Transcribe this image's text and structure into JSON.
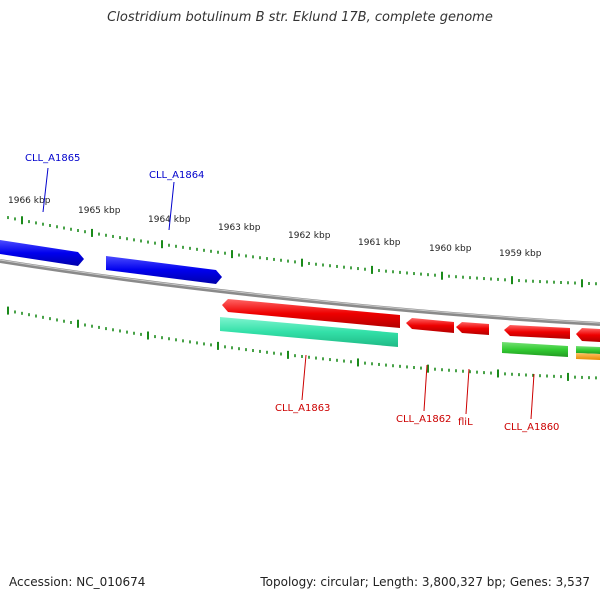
{
  "title": "Clostridium botulinum B str. Eklund 17B, complete genome",
  "footer": {
    "accession": "Accession: NC_010674",
    "summary": "Topology: circular; Length: 3,800,327 bp; Genes: 3,537"
  },
  "kbp_labels": [
    "1966 kbp",
    "1965 kbp",
    "1964 kbp",
    "1963 kbp",
    "1962 kbp",
    "1961 kbp",
    "1960 kbp",
    "1959 kbp"
  ],
  "genes": [
    {
      "name": "CLL_A1865",
      "strand": "forward",
      "color": "#0000ff"
    },
    {
      "name": "CLL_A1864",
      "strand": "forward",
      "color": "#0000ff"
    },
    {
      "name": "CLL_A1863",
      "strand": "reverse",
      "color": "#ff0000"
    },
    {
      "name": "CLL_A1862",
      "strand": "reverse",
      "color": "#ff0000"
    },
    {
      "name": "fliL",
      "strand": "reverse",
      "color": "#ff0000"
    },
    {
      "name": "CLL_A1860",
      "strand": "reverse",
      "color": "#ff0000"
    }
  ],
  "colors": {
    "forward_cds": "#0000ff",
    "reverse_cds": "#ff0000",
    "gene_feature_teal": "#33e0a8",
    "gene_feature_green": "#33cc33",
    "gene_feature_orange": "#ff9900",
    "backbone": "#8a8a8a",
    "ticks": "#1a8a1a"
  }
}
